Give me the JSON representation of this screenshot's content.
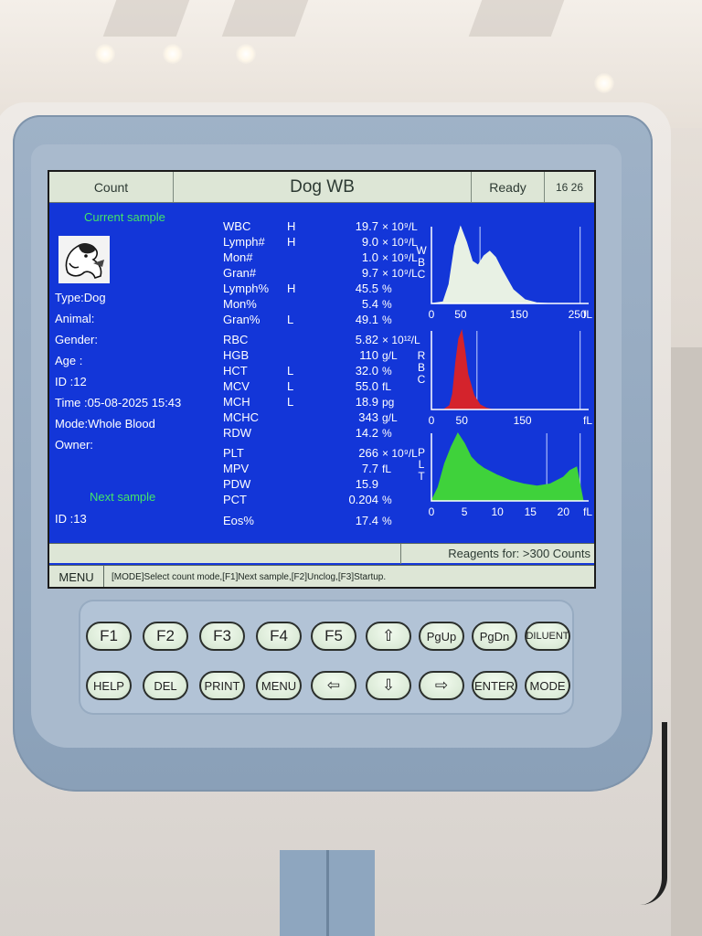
{
  "topbar": {
    "mode": "Count",
    "title": "Dog WB",
    "status": "Ready",
    "time": "16 26"
  },
  "sample_info": {
    "current_label": "Current sample",
    "type": "Type:Dog",
    "animal": "Animal:",
    "gender": "Gender:",
    "age": "Age   :",
    "id": "ID     :12",
    "time": "Time :05-08-2025 15:43",
    "mode": "Mode:Whole Blood",
    "owner": "Owner:",
    "next_label": "Next sample",
    "next_id": "ID     :13"
  },
  "params": [
    {
      "name": "WBC",
      "flag": "H",
      "value": "19.7",
      "unit": "× 10⁹/L"
    },
    {
      "name": "Lymph#",
      "flag": "H",
      "value": "9.0",
      "unit": "× 10⁹/L"
    },
    {
      "name": "Mon#",
      "flag": "",
      "value": "1.0",
      "unit": "× 10⁹/L"
    },
    {
      "name": "Gran#",
      "flag": "",
      "value": "9.7",
      "unit": "× 10⁹/L"
    },
    {
      "name": "Lymph%",
      "flag": "H",
      "value": "45.5",
      "unit": "%"
    },
    {
      "name": "Mon%",
      "flag": "",
      "value": "5.4",
      "unit": "%"
    },
    {
      "name": "Gran%",
      "flag": "L",
      "value": "49.1",
      "unit": "%"
    },
    {
      "name": "RBC",
      "flag": "",
      "value": "5.82",
      "unit": "× 10¹²/L"
    },
    {
      "name": "HGB",
      "flag": "",
      "value": "110",
      "unit": "g/L"
    },
    {
      "name": "HCT",
      "flag": "L",
      "value": "32.0",
      "unit": "%"
    },
    {
      "name": "MCV",
      "flag": "L",
      "value": "55.0",
      "unit": "fL"
    },
    {
      "name": "MCH",
      "flag": "L",
      "value": "18.9",
      "unit": "pg"
    },
    {
      "name": "MCHC",
      "flag": "",
      "value": "343",
      "unit": "g/L"
    },
    {
      "name": "RDW",
      "flag": "",
      "value": "14.2",
      "unit": "%"
    },
    {
      "name": "PLT",
      "flag": "",
      "value": "266",
      "unit": "× 10⁹/L"
    },
    {
      "name": "MPV",
      "flag": "",
      "value": "7.7",
      "unit": "fL"
    },
    {
      "name": "PDW",
      "flag": "",
      "value": "15.9",
      "unit": ""
    },
    {
      "name": "PCT",
      "flag": "",
      "value": "0.204",
      "unit": "%"
    },
    {
      "name": "Eos%",
      "flag": "",
      "value": "17.4",
      "unit": "%"
    }
  ],
  "chart_data": [
    {
      "type": "area",
      "name": "WBC",
      "axis_label": "W B C",
      "unit": "fL",
      "x": [
        0,
        20,
        30,
        40,
        50,
        60,
        70,
        80,
        90,
        100,
        110,
        120,
        140,
        160,
        180,
        200,
        240,
        260
      ],
      "y": [
        0,
        2,
        25,
        75,
        100,
        80,
        55,
        50,
        62,
        68,
        60,
        45,
        18,
        5,
        1,
        0,
        0,
        0
      ],
      "xticks": [
        0,
        50,
        150,
        250
      ],
      "xlim": [
        0,
        260
      ],
      "color": "#e8f1e4"
    },
    {
      "type": "area",
      "name": "RBC",
      "axis_label": "R B C",
      "unit": "fL",
      "x": [
        0,
        20,
        30,
        35,
        40,
        45,
        50,
        55,
        60,
        70,
        80,
        90,
        100,
        120,
        150,
        200,
        250
      ],
      "y": [
        0,
        0,
        5,
        20,
        60,
        90,
        100,
        75,
        45,
        18,
        6,
        2,
        0,
        0,
        0,
        0,
        0
      ],
      "xticks": [
        0,
        50,
        150
      ],
      "xlim": [
        0,
        250
      ],
      "color": "#d4232c"
    },
    {
      "type": "area",
      "name": "PLT",
      "axis_label": "P L T",
      "unit": "fL",
      "x": [
        0,
        1,
        2,
        3,
        4,
        5,
        6,
        7,
        8,
        10,
        12,
        14,
        16,
        18,
        20,
        21,
        22,
        23
      ],
      "y": [
        0,
        20,
        55,
        80,
        100,
        85,
        65,
        55,
        48,
        38,
        30,
        25,
        22,
        25,
        35,
        45,
        50,
        0
      ],
      "xticks": [
        0,
        5,
        10,
        15,
        20
      ],
      "xlim": [
        0,
        23
      ],
      "color": "#3fd23b"
    }
  ],
  "footer": {
    "reagents": "Reagents for: >300 Counts",
    "menu": "MENU",
    "help_text": "[MODE]Select count mode,[F1]Next sample,[F2]Unclog,[F3]Startup."
  },
  "keys_row1": [
    "F1",
    "F2",
    "F3",
    "F4",
    "F5",
    "⇧",
    "PgUp",
    "PgDn",
    "DILUENT"
  ],
  "keys_row2": [
    "HELP",
    "DEL",
    "PRINT",
    "MENU",
    "⇦",
    "⇩",
    "⇨",
    "ENTER",
    "MODE"
  ]
}
